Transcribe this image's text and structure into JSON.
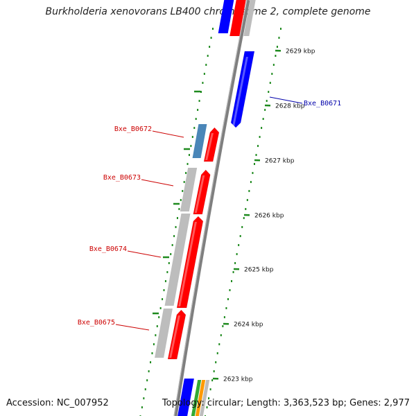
{
  "title": "Burkholderia xenovorans LB400 chromosome 2, complete genome",
  "footer": {
    "accession": "Accession: NC_007952",
    "topology": "Topology: circular; Length: 3,363,523 bp; Genes: 2,977"
  },
  "colors": {
    "backbone": "#7f7f7f",
    "ticks": "#1e8a1e",
    "forward_gene": "#ff0000",
    "reverse_gene": "#0000ff",
    "rna_gene": "#4a86b8",
    "other_feature": "#bdbdbd",
    "label_forward": "#cc0000",
    "label_reverse": "#0000aa"
  },
  "kbp_ticks": [
    "2623 kbp",
    "2624 kbp",
    "2625 kbp",
    "2626 kbp",
    "2627 kbp",
    "2628 kbp",
    "2629 kbp"
  ],
  "gene_labels": [
    {
      "id": "Bxe_B0671",
      "strand": "reverse"
    },
    {
      "id": "Bxe_B0672",
      "strand": "forward"
    },
    {
      "id": "Bxe_B0673",
      "strand": "forward"
    },
    {
      "id": "Bxe_B0674",
      "strand": "forward"
    },
    {
      "id": "Bxe_B0675",
      "strand": "forward"
    }
  ]
}
